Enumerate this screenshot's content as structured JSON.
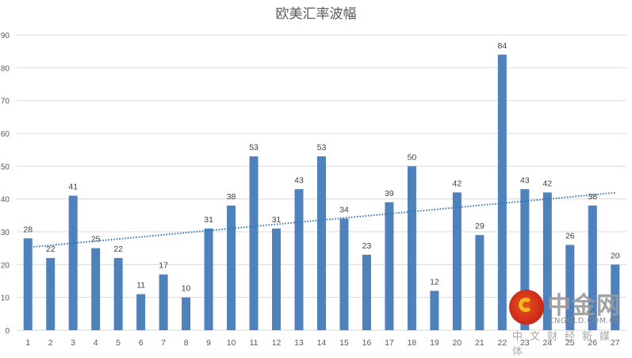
{
  "chart_data": {
    "type": "bar",
    "title": "欧美汇率波幅",
    "xlabel": "",
    "ylabel": "",
    "categories": [
      "1",
      "2",
      "3",
      "4",
      "5",
      "6",
      "7",
      "8",
      "9",
      "10",
      "11",
      "12",
      "13",
      "14",
      "15",
      "16",
      "17",
      "18",
      "19",
      "20",
      "21",
      "22",
      "23",
      "24",
      "25",
      "26",
      "27"
    ],
    "values": [
      28,
      22,
      41,
      25,
      22,
      11,
      17,
      10,
      31,
      38,
      53,
      31,
      43,
      53,
      34,
      23,
      39,
      50,
      12,
      42,
      29,
      84,
      43,
      42,
      26,
      38,
      20
    ],
    "ylim": [
      0,
      90
    ],
    "yticks": [
      0,
      10,
      20,
      30,
      40,
      50,
      60,
      70,
      80,
      90
    ],
    "grid": true,
    "legend": null,
    "data_labels": true,
    "bar_color": "#4f81bd",
    "trendline": {
      "type": "linear",
      "style": "dotted",
      "color": "#2e75b6",
      "start_value": 25.4,
      "end_value": 41.9
    }
  },
  "watermark": {
    "name": "中金网",
    "domain": "CNGOLD.COM.CN",
    "tagline": "中文财经新媒体"
  }
}
